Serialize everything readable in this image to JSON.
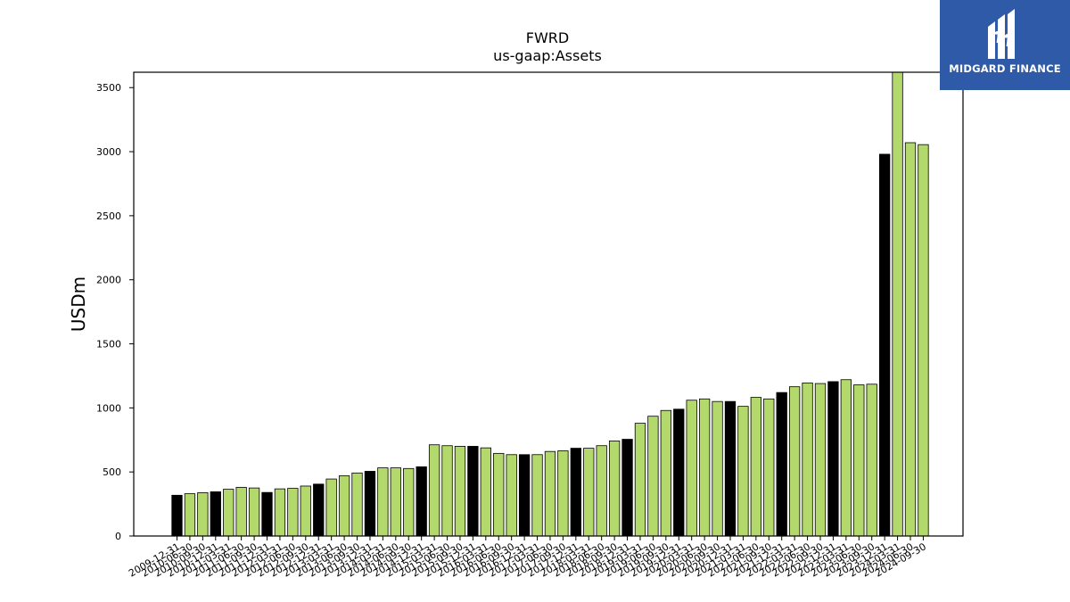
{
  "chart_data": {
    "type": "bar",
    "title": "FWRD",
    "subtitle": "us-gaap:Assets",
    "ylabel": "USDm",
    "xlabel": "",
    "ylim": [
      0,
      3620
    ],
    "yticks": [
      0,
      500,
      1000,
      1500,
      2000,
      2500,
      3000,
      3500
    ],
    "grid": false,
    "colors": {
      "annual": "#000000",
      "quarterly": "#b3d86b",
      "edge": "#000000"
    },
    "categories": [
      "2009-12-31",
      "2010-06-30",
      "2010-09-30",
      "2010-12-31",
      "2011-03-31",
      "2011-06-30",
      "2011-09-30",
      "2011-12-31",
      "2012-03-31",
      "2012-06-30",
      "2012-09-30",
      "2012-12-31",
      "2013-03-31",
      "2013-06-30",
      "2013-09-30",
      "2013-12-31",
      "2014-03-31",
      "2014-06-30",
      "2014-09-30",
      "2014-12-31",
      "2015-03-31",
      "2015-06-30",
      "2015-09-30",
      "2015-12-31",
      "2016-03-31",
      "2016-06-30",
      "2016-09-30",
      "2016-12-31",
      "2017-03-31",
      "2017-06-30",
      "2017-09-30",
      "2017-12-31",
      "2018-03-31",
      "2018-06-30",
      "2018-09-30",
      "2018-12-31",
      "2019-03-31",
      "2019-06-30",
      "2019-09-30",
      "2019-12-31",
      "2020-03-31",
      "2020-06-30",
      "2020-09-30",
      "2020-12-31",
      "2021-03-31",
      "2021-06-30",
      "2021-09-30",
      "2021-12-31",
      "2022-03-31",
      "2022-06-30",
      "2022-09-30",
      "2022-12-31",
      "2023-03-31",
      "2023-06-30",
      "2023-09-30",
      "2023-12-31",
      "2024-03-31",
      "2024-06-30",
      "2024-09-30"
    ],
    "values": [
      318,
      330,
      338,
      345,
      365,
      380,
      375,
      340,
      368,
      372,
      390,
      405,
      445,
      470,
      492,
      505,
      532,
      532,
      527,
      540,
      712,
      705,
      700,
      700,
      688,
      645,
      635,
      635,
      635,
      660,
      665,
      685,
      685,
      705,
      742,
      755,
      880,
      935,
      980,
      990,
      1060,
      1070,
      1050,
      1050,
      1012,
      1082,
      1070,
      1120,
      1165,
      1195,
      1190,
      1205,
      1220,
      1180,
      1185,
      2980,
      3650,
      3070,
      3055
    ],
    "annual": [
      true,
      false,
      false,
      true,
      false,
      false,
      false,
      true,
      false,
      false,
      false,
      true,
      false,
      false,
      false,
      true,
      false,
      false,
      false,
      true,
      false,
      false,
      false,
      true,
      false,
      false,
      false,
      true,
      false,
      false,
      false,
      true,
      false,
      false,
      false,
      true,
      false,
      false,
      false,
      true,
      false,
      false,
      false,
      true,
      false,
      false,
      false,
      true,
      false,
      false,
      false,
      true,
      false,
      false,
      false,
      true,
      false,
      false,
      false
    ]
  },
  "logo": {
    "text": "MIDGARD FINANCE"
  }
}
